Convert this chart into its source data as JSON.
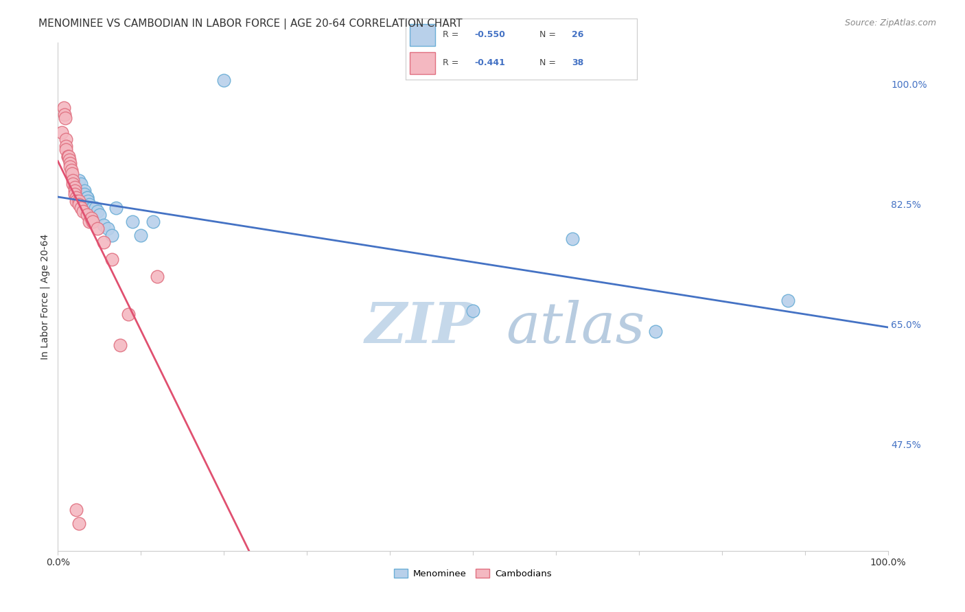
{
  "title": "MENOMINEE VS CAMBODIAN IN LABOR FORCE | AGE 20-64 CORRELATION CHART",
  "source": "Source: ZipAtlas.com",
  "ylabel": "In Labor Force | Age 20-64",
  "y_ticks_labels": [
    "100.0%",
    "82.5%",
    "65.0%",
    "47.5%"
  ],
  "y_tick_vals": [
    1.0,
    0.825,
    0.65,
    0.475
  ],
  "xlim": [
    0.0,
    1.0
  ],
  "ylim": [
    0.32,
    1.06
  ],
  "legend_r1": "R = -0.550",
  "legend_n1": "N = 26",
  "legend_r2": "R = -0.441",
  "legend_n2": "N = 38",
  "menominee_color": "#b8d0ea",
  "menominee_edge": "#6baed6",
  "cambodian_color": "#f4b8c1",
  "cambodian_edge": "#e07080",
  "line_blue": "#4472c4",
  "line_pink": "#e05070",
  "background_color": "#ffffff",
  "grid_color": "#cccccc",
  "title_fontsize": 11,
  "source_fontsize": 9,
  "axis_label_fontsize": 10,
  "tick_fontsize": 10,
  "menominee_x": [
    0.2,
    0.025,
    0.028,
    0.032,
    0.032,
    0.035,
    0.035,
    0.036,
    0.038,
    0.04,
    0.04,
    0.042,
    0.045,
    0.048,
    0.05,
    0.055,
    0.06,
    0.065,
    0.07,
    0.09,
    0.1,
    0.115,
    0.5,
    0.62,
    0.72,
    0.88
  ],
  "menominee_y": [
    1.005,
    0.86,
    0.855,
    0.845,
    0.84,
    0.835,
    0.835,
    0.83,
    0.825,
    0.82,
    0.815,
    0.82,
    0.82,
    0.815,
    0.81,
    0.795,
    0.79,
    0.78,
    0.82,
    0.8,
    0.78,
    0.8,
    0.67,
    0.775,
    0.64,
    0.685
  ],
  "cambodian_x": [
    0.005,
    0.007,
    0.008,
    0.009,
    0.01,
    0.01,
    0.01,
    0.012,
    0.012,
    0.013,
    0.014,
    0.015,
    0.015,
    0.016,
    0.017,
    0.018,
    0.018,
    0.02,
    0.02,
    0.02,
    0.022,
    0.022,
    0.025,
    0.025,
    0.028,
    0.03,
    0.035,
    0.038,
    0.04,
    0.042,
    0.048,
    0.055,
    0.065,
    0.075,
    0.085,
    0.12,
    0.022,
    0.025
  ],
  "cambodian_y": [
    0.93,
    0.965,
    0.955,
    0.95,
    0.92,
    0.91,
    0.905,
    0.895,
    0.895,
    0.895,
    0.89,
    0.885,
    0.88,
    0.875,
    0.87,
    0.86,
    0.855,
    0.85,
    0.845,
    0.84,
    0.835,
    0.83,
    0.83,
    0.825,
    0.82,
    0.815,
    0.81,
    0.8,
    0.805,
    0.8,
    0.79,
    0.77,
    0.745,
    0.62,
    0.665,
    0.72,
    0.38,
    0.36
  ],
  "watermark_zip_color": "#c5d8ea",
  "watermark_atlas_color": "#b8cce0",
  "watermark_fontsize": 60
}
